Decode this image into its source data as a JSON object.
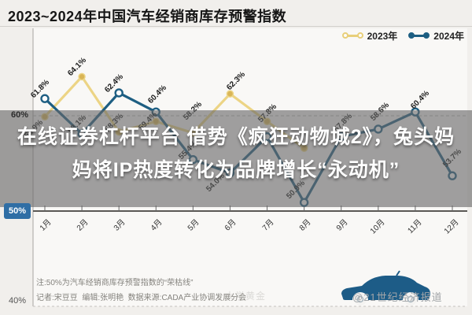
{
  "title": "2023~2024年中国汽车经销商库存预警指数",
  "legend": {
    "items": [
      {
        "label": "2023年",
        "color": "#e8cf7a",
        "marker": "open"
      },
      {
        "label": "2024年",
        "color": "#1d5e82",
        "marker": "solid"
      }
    ]
  },
  "overlay": {
    "line1": "在线证券杠杆平台 借势《疯狂动物城2》，兔头妈",
    "line2": "妈将IP热度转化为品牌增长“永动机”"
  },
  "y_axis": {
    "top": "60%",
    "mid": "50%",
    "bottom": "40%"
  },
  "chart_data": {
    "type": "line",
    "title": "2023~2024年中国汽车经销商库存预警指数",
    "categories": [
      "1月",
      "2月",
      "3月",
      "4月",
      "5月",
      "6月",
      "7月",
      "8月",
      "9月",
      "10月",
      "11月",
      "12月"
    ],
    "ylim": [
      40,
      67
    ],
    "y_ticks": [
      "60%",
      "50%",
      "40%"
    ],
    "grid": "dashed horizontal at 60% and 40%, emphasized boom-bust line at 50%",
    "legend_position": "top-right",
    "boom_bust_line": 50,
    "series": [
      {
        "name": "2023年",
        "color": "#ecd485",
        "marker_color": "#d9b556",
        "marker": "solid",
        "values": [
          59.9,
          64.1,
          58.3,
          59.4,
          58.2,
          62.3,
          59.4,
          56.6,
          null,
          null,
          null,
          null
        ],
        "labels": [
          "59.9%",
          "64.1%",
          "58.3%",
          "59.4%",
          "58.2%",
          "62.3%",
          "",
          "",
          "",
          "",
          "",
          ""
        ]
      },
      {
        "name": "2024年",
        "color": "#1d5e82",
        "marker_color": "#ffffff",
        "marker": "open",
        "values": [
          61.8,
          58.1,
          62.4,
          60.4,
          55.4,
          54.0,
          57.8,
          50.9,
          57.8,
          58.6,
          60.4,
          53.7
        ],
        "labels": [
          "61.8%",
          "58.1%",
          "62.4%",
          "60.4%",
          "55.4%",
          "54.0%",
          "57.8%",
          "50.9%",
          "57.8%",
          "58.6%",
          "60.4%",
          "53.7%"
        ]
      }
    ]
  },
  "notes": {
    "note1": "注:50%为汽车经销商库存预警指数的“荣枯线”",
    "note2": "记者:宋豆豆  编辑:张明艳  数据来源:CADA产业协调发展分会"
  },
  "watermark": "@21世纪经济报道",
  "watermark_faint": "大学黄金",
  "colors": {
    "background": "#f1efec",
    "band": "#686868",
    "badge_blue": "#2f6ea5",
    "series_2023": "#e8cf7a",
    "series_2024": "#1d5e82",
    "car_blue": "#1d5c87"
  }
}
